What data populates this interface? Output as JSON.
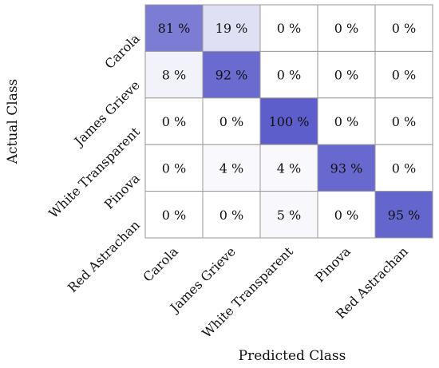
{
  "chart_data": {
    "type": "heatmap",
    "title": "",
    "xlabel": "Predicted Class",
    "ylabel": "Actual Class",
    "x_categories": [
      "Carola",
      "James Grieve",
      "White Transparent",
      "Pinova",
      "Red Astrachan"
    ],
    "y_categories": [
      "Carola",
      "James Grieve",
      "White Transparent",
      "Pinova",
      "Red Astrachan"
    ],
    "unit": "%",
    "values": [
      [
        81,
        19,
        0,
        0,
        0
      ],
      [
        8,
        92,
        0,
        0,
        0
      ],
      [
        0,
        0,
        100,
        0,
        0
      ],
      [
        0,
        4,
        4,
        93,
        0
      ],
      [
        0,
        0,
        5,
        0,
        95
      ]
    ],
    "colors": {
      "low": "#ffffff",
      "high": "#5d5dcb",
      "grid": "#9a9a9a",
      "text": "#111111"
    }
  }
}
